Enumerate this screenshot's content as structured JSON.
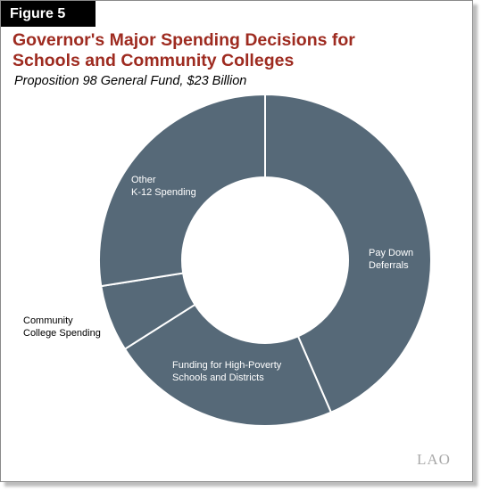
{
  "figure_label": "Figure 5",
  "title_line1": "Governor's Major Spending Decisions for",
  "title_line2": "Schools and Community Colleges",
  "subtitle": "Proposition 98 General Fund, $23 Billion",
  "logo": "LAO",
  "colors": {
    "slice": "#566978",
    "title": "#9e2b20",
    "separator": "#ffffff"
  },
  "chart_data": {
    "type": "pie",
    "style": "donut",
    "total_label": "$23 Billion",
    "slices": [
      {
        "label_line1": "Pay Down",
        "label_line2": "Deferrals",
        "value": 43.5,
        "label_inside": true
      },
      {
        "label_line1": "Funding for High-Poverty",
        "label_line2": "Schools and Districts",
        "value": 22.5,
        "label_inside": true
      },
      {
        "label_line1": "Community",
        "label_line2": "College Spending",
        "value": 6.5,
        "label_inside": false
      },
      {
        "label_line1": "Other",
        "label_line2": "K-12 Spending",
        "value": 27.5,
        "label_inside": true
      }
    ]
  }
}
